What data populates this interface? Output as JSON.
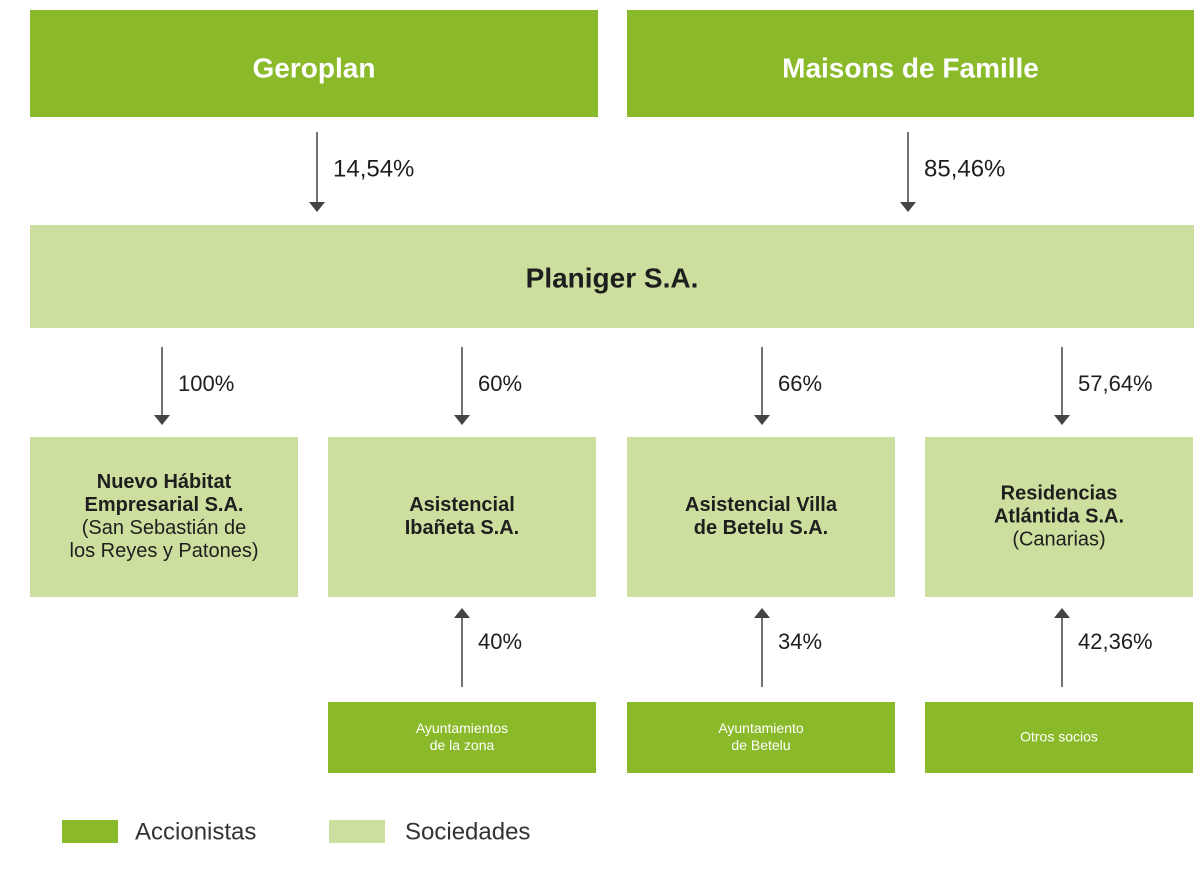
{
  "shareholders": [
    {
      "name": "Geroplan"
    },
    {
      "name": "Maisons de Famille"
    }
  ],
  "holding_stakes": [
    "14,54%",
    "85,46%"
  ],
  "holding": {
    "name": "Planiger S.A."
  },
  "subsidiary_stakes": [
    "100%",
    "60%",
    "66%",
    "57,64%"
  ],
  "subsidiaries": [
    {
      "name_lines": [
        "Nuevo Hábitat",
        "Empresarial S.A."
      ],
      "detail_lines": [
        "(San Sebastián de",
        "los Reyes y Patones)"
      ]
    },
    {
      "name_lines": [
        "Asistencial",
        "Ibañeta S.A."
      ],
      "detail_lines": []
    },
    {
      "name_lines": [
        "Asistencial Villa",
        "de Betelu S.A."
      ],
      "detail_lines": []
    },
    {
      "name_lines": [
        "Residencias",
        "Atlántida S.A."
      ],
      "detail_lines": [
        "(Canarias)"
      ]
    }
  ],
  "minority": [
    {
      "stake": "40%",
      "label_lines": [
        "Ayuntamientos",
        "de la zona"
      ]
    },
    {
      "stake": "34%",
      "label_lines": [
        "Ayuntamiento",
        "de Betelu"
      ]
    },
    {
      "stake": "42,36%",
      "label_lines": [
        "Otros socios"
      ]
    }
  ],
  "legend": [
    "Accionistas",
    "Sociedades"
  ]
}
